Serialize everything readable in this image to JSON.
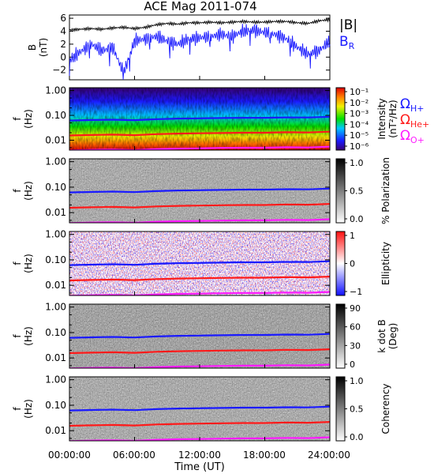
{
  "title": "ACE Mag 2011-074",
  "x_axis": {
    "ticks": [
      "00:00:00",
      "06:00:00",
      "12:00:00",
      "18:00:00",
      "24:00:00"
    ],
    "label": "Time (UT)"
  },
  "freq_ticks": [
    "1.00",
    "0.10",
    "0.01"
  ],
  "freq_ylabel": [
    "f",
    "(Hz)"
  ],
  "gyro_legend": [
    {
      "label": "Ω",
      "sub": "H+",
      "color": "#1a1aff"
    },
    {
      "label": "Ω",
      "sub": "He+",
      "color": "#ff1a1a"
    },
    {
      "label": "Ω",
      "sub": "O+",
      "color": "#ff1aff"
    }
  ],
  "colors": {
    "B_total": "#000000",
    "B_R": "#1a1aff",
    "H_plus": "#1a1aff",
    "He_plus": "#ff1a1a",
    "O_plus": "#ff1aff"
  },
  "chart_data": [
    {
      "type": "line",
      "panel": "magnetic_field",
      "ylabel": [
        "B",
        "(nT)"
      ],
      "yticks": [
        "6",
        "4",
        "2",
        "0",
        "−2"
      ],
      "ylim": [
        -3.5,
        6.5
      ],
      "xlim_hours": [
        0,
        24
      ],
      "series": [
        {
          "name": "|B|",
          "sub": "",
          "x": [
            0,
            1,
            2,
            3,
            4,
            5,
            6,
            7,
            8,
            9,
            10,
            11,
            12,
            13,
            14,
            15,
            16,
            17,
            18,
            19,
            20,
            21,
            22,
            23,
            24
          ],
          "values": [
            4.2,
            4.3,
            4.4,
            4.3,
            4.5,
            4.6,
            4.4,
            4.6,
            5.0,
            5.2,
            5.1,
            5.3,
            5.3,
            5.4,
            5.3,
            5.4,
            5.5,
            5.4,
            5.4,
            5.5,
            5.5,
            5.3,
            5.2,
            5.6,
            5.8
          ]
        },
        {
          "name": "B",
          "sub": "R",
          "x": [
            0,
            1,
            2,
            3,
            4,
            5,
            6,
            7,
            8,
            9,
            10,
            11,
            12,
            13,
            14,
            15,
            16,
            17,
            18,
            19,
            20,
            21,
            22,
            23,
            24
          ],
          "values": [
            -0.5,
            0.8,
            2.0,
            1.0,
            1.5,
            -2.5,
            2.5,
            2.8,
            3.2,
            2.5,
            2.0,
            2.8,
            3.0,
            3.2,
            3.5,
            3.2,
            4.0,
            4.2,
            3.8,
            3.5,
            2.8,
            1.5,
            0.5,
            1.0,
            2.5
          ]
        }
      ]
    },
    {
      "type": "heatmap",
      "panel": "intensity_spectrogram",
      "colorbar_label": [
        "Intensity",
        "(nT²/Hz)"
      ],
      "colorbar_ticks": [
        "10⁻¹",
        "10⁻²",
        "10⁻³",
        "10⁻⁴",
        "10⁻⁵",
        "10⁻⁶"
      ],
      "colormap": "rainbow",
      "ylim_hz": [
        0.004,
        1.3
      ],
      "log_y": true
    },
    {
      "type": "heatmap",
      "panel": "percent_polarization",
      "colorbar_label": [
        "% Polarization"
      ],
      "colorbar_ticks": [
        "1.0",
        "0.5",
        "0.0"
      ],
      "colormap": "gray",
      "ylim_hz": [
        0.004,
        1.3
      ],
      "log_y": true
    },
    {
      "type": "heatmap",
      "panel": "ellipticity",
      "colorbar_label": [
        "Ellipticity"
      ],
      "colorbar_ticks": [
        "1",
        "0",
        "−1"
      ],
      "colormap": "blue-white-red",
      "ylim_hz": [
        0.004,
        1.3
      ],
      "log_y": true
    },
    {
      "type": "heatmap",
      "panel": "wave_normal_angle",
      "colorbar_label": [
        "k dot B",
        "(Deg)"
      ],
      "colorbar_ticks": [
        "90",
        "60",
        "30",
        "0"
      ],
      "colormap": "gray",
      "ylim_hz": [
        0.004,
        1.3
      ],
      "log_y": true
    },
    {
      "type": "heatmap",
      "panel": "coherency",
      "colorbar_label": [
        "Coherency"
      ],
      "colorbar_ticks": [
        "1.0",
        "0.5",
        "0.0"
      ],
      "colormap": "gray",
      "ylim_hz": [
        0.004,
        1.3
      ],
      "log_y": true
    }
  ],
  "gyrofrequency_lines_hz": {
    "x_hours": [
      0,
      2,
      4,
      6,
      8,
      10,
      12,
      14,
      16,
      18,
      20,
      22,
      24
    ],
    "H_plus": [
      0.062,
      0.065,
      0.067,
      0.064,
      0.07,
      0.074,
      0.076,
      0.078,
      0.08,
      0.08,
      0.083,
      0.082,
      0.088
    ],
    "He_plus": [
      0.0155,
      0.0162,
      0.0168,
      0.016,
      0.0175,
      0.0185,
      0.019,
      0.0195,
      0.02,
      0.02,
      0.021,
      0.0205,
      0.022
    ],
    "O_plus": [
      0.0039,
      0.0041,
      0.0042,
      0.004,
      0.0044,
      0.0046,
      0.0047,
      0.0049,
      0.005,
      0.005,
      0.0052,
      0.0051,
      0.0055
    ]
  }
}
